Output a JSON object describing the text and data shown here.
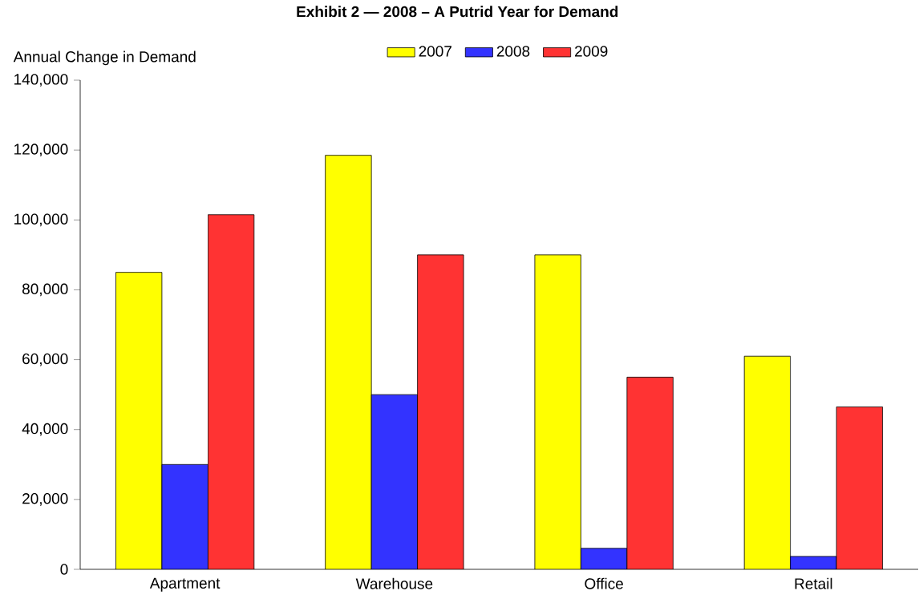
{
  "chart_data": {
    "type": "bar",
    "title": "Exhibit 2 — 2008 – A Putrid Year for Demand",
    "ylabel": "Annual Change in Demand",
    "categories": [
      "Apartment",
      "Warehouse",
      "Office",
      "Retail"
    ],
    "series": [
      {
        "name": "2007",
        "color": "#ffff00",
        "values": [
          85000,
          118500,
          90000,
          61000
        ]
      },
      {
        "name": "2008",
        "color": "#3333ff",
        "values": [
          30000,
          50000,
          6000,
          3700
        ]
      },
      {
        "name": "2009",
        "color": "#ff3333",
        "values": [
          101500,
          90000,
          55000,
          46500
        ]
      }
    ],
    "ylim": [
      0,
      140000
    ],
    "yticks": [
      {
        "value": 0,
        "label": "0"
      },
      {
        "value": 20000,
        "label": "20,000"
      },
      {
        "value": 40000,
        "label": "40,000"
      },
      {
        "value": 60000,
        "label": "60,000"
      },
      {
        "value": 80000,
        "label": "80,000"
      },
      {
        "value": 100000,
        "label": "100,000"
      },
      {
        "value": 120000,
        "label": "120,000"
      },
      {
        "value": 140000,
        "label": "140,000"
      }
    ],
    "grid": false,
    "legend": "top"
  }
}
